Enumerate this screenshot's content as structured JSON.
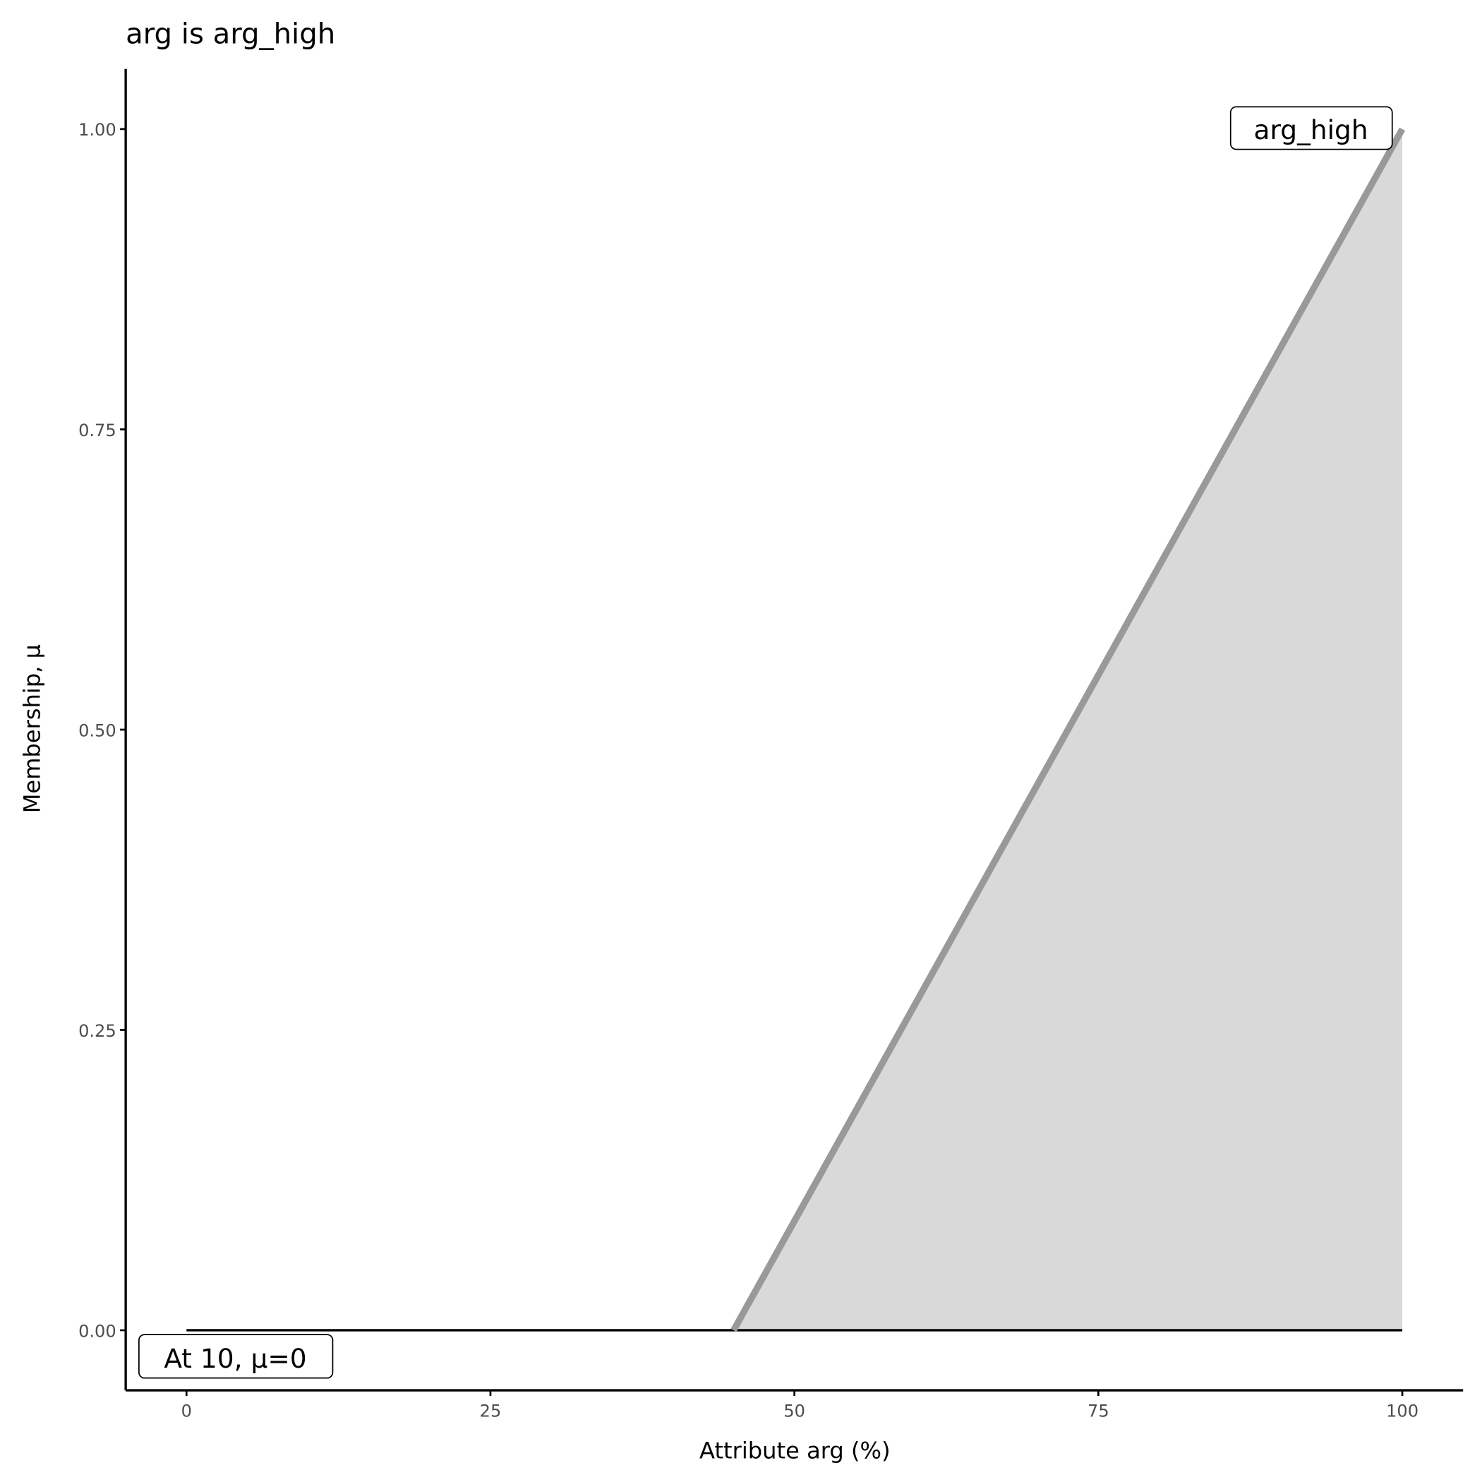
{
  "chart_data": {
    "type": "area_line",
    "title": "arg is arg_high",
    "x_label": "Attribute arg (%)",
    "y_label": "Membership, μ",
    "x": [
      45,
      100
    ],
    "values": [
      0,
      1
    ],
    "color": "#999999",
    "fill": "#d9d9d9",
    "baseline": {
      "x": [
        0,
        100
      ],
      "values": [
        0,
        0
      ],
      "color": "#000000"
    },
    "annotations": [
      "arg_high",
      "At 10, μ=0"
    ],
    "xlim": [
      -5,
      105
    ],
    "xticks": [
      0,
      25,
      50,
      75,
      100
    ],
    "ylim": [
      -0.05,
      1.05
    ],
    "yticks": [
      {
        "value": 0,
        "label": "0.00"
      },
      {
        "value": 0.25,
        "label": "0.25"
      },
      {
        "value": 0.5,
        "label": "0.50"
      },
      {
        "value": 0.75,
        "label": "0.75"
      },
      {
        "value": 1,
        "label": "1.00"
      }
    ]
  }
}
